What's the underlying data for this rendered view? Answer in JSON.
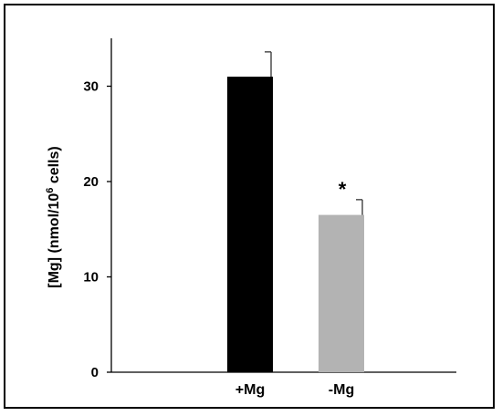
{
  "chart_data": {
    "type": "bar",
    "categories": [
      "+Mg",
      "-Mg"
    ],
    "values": [
      31,
      16.5
    ],
    "errors": [
      2.6,
      1.6
    ],
    "colors": [
      "#000000",
      "#b3b3b3"
    ],
    "annotations": [
      "",
      "*"
    ],
    "title": "",
    "xlabel": "",
    "ylabel_parts": {
      "pre": "[Mg] (nmol/10",
      "sup": "6",
      "post": " cells)"
    },
    "ylim": [
      0,
      35
    ],
    "yticks": [
      0,
      10,
      20,
      30
    ],
    "grid": false,
    "legend": "none"
  }
}
